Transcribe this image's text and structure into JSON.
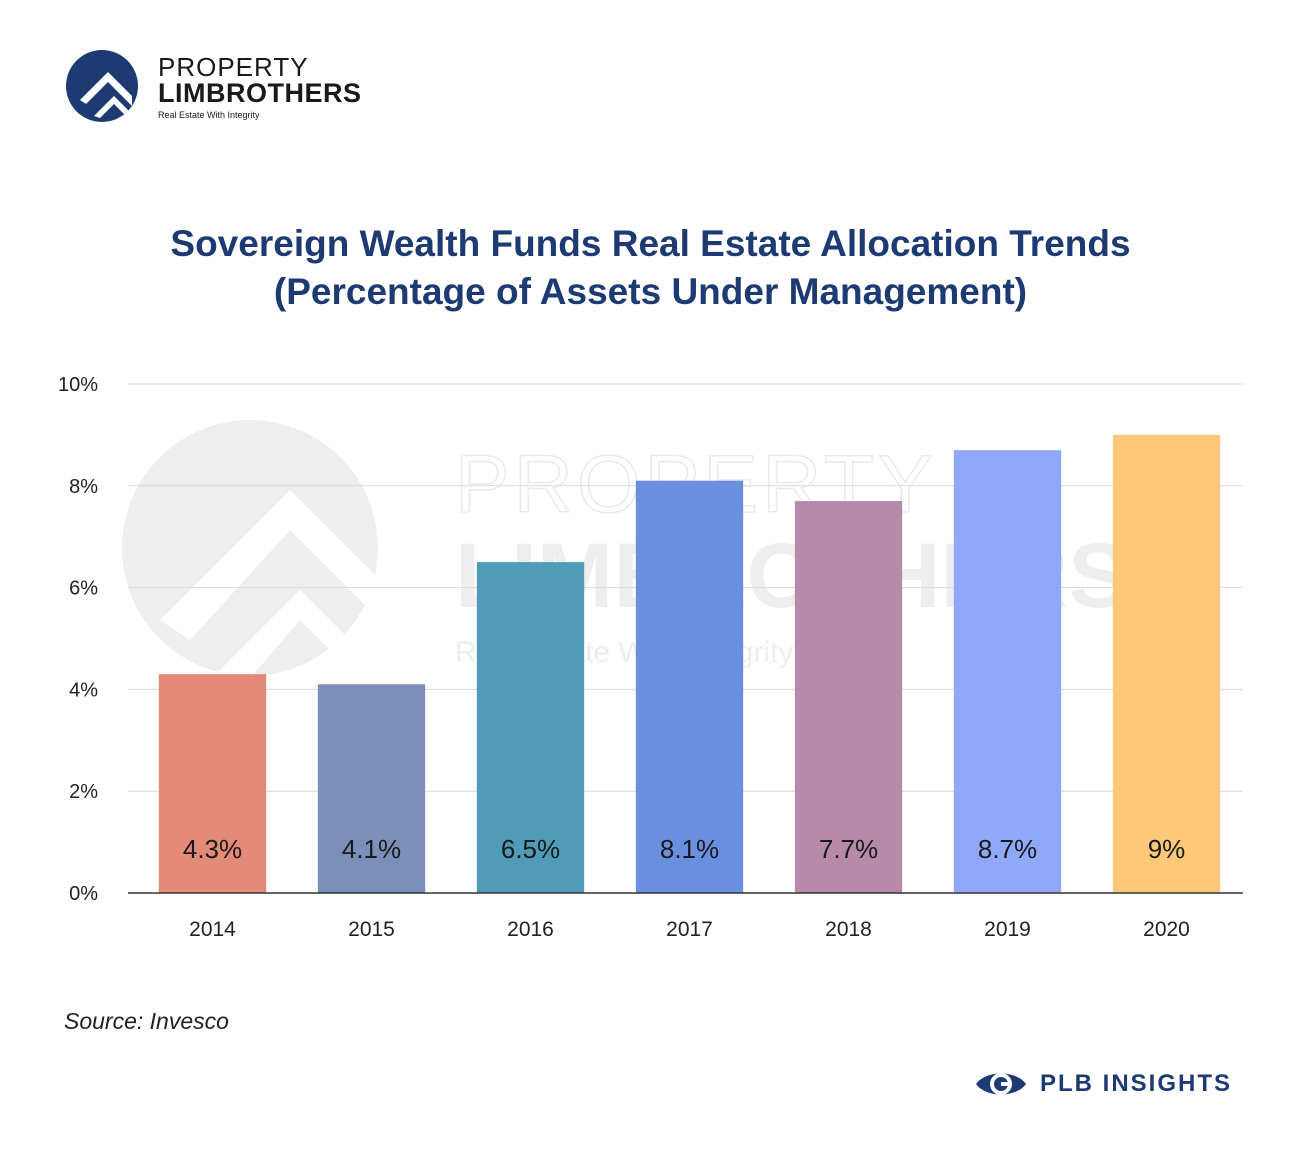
{
  "brand": {
    "line1": "PROPERTY",
    "line2": "LIMBROTHERS",
    "tagline": "Real Estate With Integrity"
  },
  "title": {
    "line1": "Sovereign Wealth Funds Real Estate Allocation Trends",
    "line2": "(Percentage of Assets Under Management)"
  },
  "source": "Source: Invesco",
  "insights": "PLB INSIGHTS",
  "watermark": {
    "line1": "PROPERTY",
    "line2": "LIMBROTHERS",
    "line3": "Real Estate With Integrity"
  },
  "colors": {
    "brand": "#1d3a72",
    "grid": "#d9d9d9",
    "axis": "#333333"
  },
  "chart_data": {
    "type": "bar",
    "categories": [
      "2014",
      "2015",
      "2016",
      "2017",
      "2018",
      "2019",
      "2020"
    ],
    "values": [
      4.3,
      4.1,
      6.5,
      8.1,
      7.7,
      8.7,
      9
    ],
    "data_labels": [
      "4.3%",
      "4.1%",
      "6.5%",
      "8.1%",
      "7.7%",
      "8.7%",
      "9%"
    ],
    "bar_colors": [
      "#e48a78",
      "#7a90ba",
      "#4f9bb8",
      "#6b8fe0",
      "#b88aa9",
      "#90a8fa",
      "#fdc879"
    ],
    "ylim": [
      0,
      10
    ],
    "yticks": [
      0,
      2,
      4,
      6,
      8,
      10
    ],
    "ytick_labels": [
      "0%",
      "2%",
      "4%",
      "6%",
      "8%",
      "10%"
    ],
    "grid": true,
    "legend": "none"
  }
}
